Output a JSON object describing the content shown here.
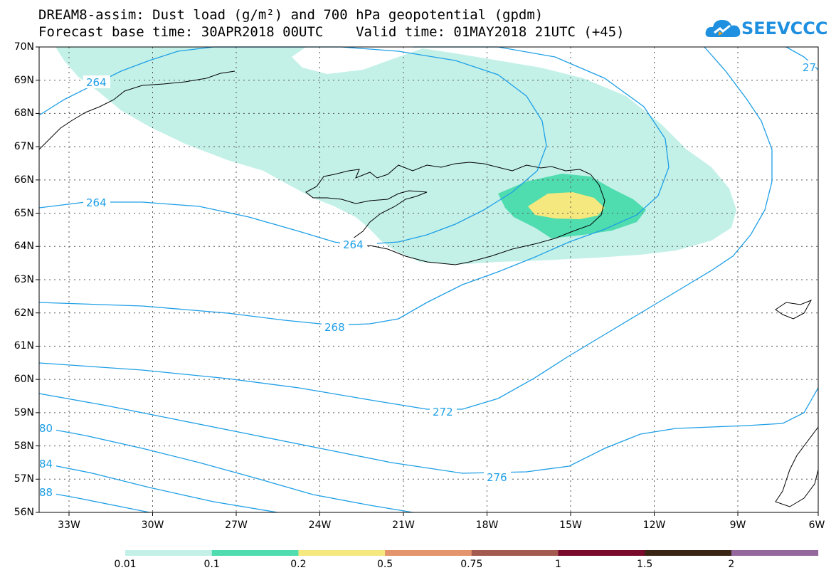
{
  "header": {
    "title_line1": "DREAM8-assim: Dust load (g/m²) and 700 hPa geopotential (gpdm)",
    "title_line2": "Forecast base time: 30APR2018 00UTC    Valid time: 01MAY2018 21UTC (+45)"
  },
  "logo": {
    "text": "SEEVCCC",
    "icon": "cloud-icon"
  },
  "map": {
    "lat_labels": [
      "70N",
      "69N",
      "68N",
      "67N",
      "66N",
      "65N",
      "64N",
      "63N",
      "62N",
      "61N",
      "60N",
      "59N",
      "58N",
      "57N",
      "56N"
    ],
    "lon_labels": [
      "33W",
      "30W",
      "27W",
      "24W",
      "21W",
      "18W",
      "15W",
      "12W",
      "9W",
      "6W"
    ],
    "contour_labels": [
      "264",
      "264",
      "264",
      "268",
      "272",
      "276",
      "27",
      "80",
      "84",
      "88"
    ],
    "contour_color": "#1e9fe6"
  },
  "colorbar": {
    "labels": [
      "0.01",
      "0.1",
      "0.2",
      "0.5",
      "0.75",
      "1",
      "1.5",
      "2"
    ],
    "colors": [
      "#c3f1e8",
      "#4fdcae",
      "#f5e87e",
      "#e3946c",
      "#a45a4f",
      "#7a0a2c",
      "#3a2515",
      "#94689c"
    ]
  }
}
